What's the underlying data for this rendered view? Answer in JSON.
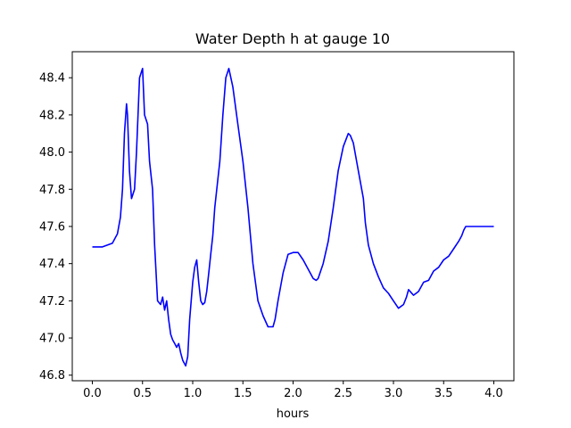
{
  "chart_data": {
    "type": "line",
    "title": "Water Depth h at gauge 10",
    "xlabel": "hours",
    "ylabel": "",
    "xlim": [
      -0.2,
      4.2
    ],
    "ylim": [
      46.77,
      48.54
    ],
    "xticks": [
      0.0,
      0.5,
      1.0,
      1.5,
      2.0,
      2.5,
      3.0,
      3.5,
      4.0
    ],
    "xtick_labels": [
      "0.0",
      "0.5",
      "1.0",
      "1.5",
      "2.0",
      "2.5",
      "3.0",
      "3.5",
      "4.0"
    ],
    "yticks": [
      46.8,
      47.0,
      47.2,
      47.4,
      47.6,
      47.8,
      48.0,
      48.2,
      48.4
    ],
    "ytick_labels": [
      "46.8",
      "47.0",
      "47.2",
      "47.4",
      "47.6",
      "47.8",
      "48.0",
      "48.2",
      "48.4"
    ],
    "grid": false,
    "series": [
      {
        "color": "#0000ff",
        "x": [
          0.0,
          0.1,
          0.2,
          0.25,
          0.28,
          0.3,
          0.32,
          0.34,
          0.35,
          0.37,
          0.39,
          0.42,
          0.44,
          0.47,
          0.5,
          0.52,
          0.55,
          0.57,
          0.6,
          0.62,
          0.65,
          0.68,
          0.7,
          0.72,
          0.74,
          0.76,
          0.78,
          0.8,
          0.82,
          0.84,
          0.86,
          0.88,
          0.9,
          0.93,
          0.95,
          0.97,
          1.0,
          1.02,
          1.04,
          1.06,
          1.08,
          1.1,
          1.12,
          1.14,
          1.16,
          1.18,
          1.2,
          1.22,
          1.25,
          1.27,
          1.3,
          1.33,
          1.36,
          1.4,
          1.45,
          1.5,
          1.55,
          1.6,
          1.65,
          1.7,
          1.75,
          1.8,
          1.82,
          1.85,
          1.9,
          1.95,
          2.0,
          2.05,
          2.1,
          2.15,
          2.2,
          2.23,
          2.25,
          2.3,
          2.35,
          2.4,
          2.45,
          2.5,
          2.55,
          2.57,
          2.6,
          2.65,
          2.7,
          2.72,
          2.75,
          2.8,
          2.85,
          2.9,
          2.95,
          3.0,
          3.05,
          3.1,
          3.13,
          3.15,
          3.2,
          3.25,
          3.3,
          3.35,
          3.4,
          3.45,
          3.5,
          3.55,
          3.6,
          3.65,
          3.68,
          3.7,
          3.72,
          3.74,
          3.76,
          3.78,
          3.8,
          3.82,
          3.84,
          3.86,
          3.88,
          3.9,
          3.93,
          3.96,
          4.0
        ],
        "y": [
          47.49,
          47.49,
          47.51,
          47.56,
          47.65,
          47.8,
          48.1,
          48.26,
          48.2,
          47.9,
          47.75,
          47.8,
          48.0,
          48.4,
          48.45,
          48.2,
          48.15,
          47.95,
          47.8,
          47.5,
          47.2,
          47.18,
          47.22,
          47.15,
          47.2,
          47.1,
          47.02,
          46.99,
          46.97,
          46.95,
          46.97,
          46.92,
          46.88,
          46.85,
          46.9,
          47.1,
          47.3,
          47.38,
          47.42,
          47.3,
          47.2,
          47.18,
          47.19,
          47.25,
          47.35,
          47.45,
          47.55,
          47.7,
          47.85,
          47.95,
          48.2,
          48.4,
          48.45,
          48.35,
          48.15,
          47.95,
          47.7,
          47.4,
          47.2,
          47.12,
          47.06,
          47.06,
          47.1,
          47.2,
          47.35,
          47.45,
          47.46,
          47.46,
          47.42,
          47.37,
          47.32,
          47.31,
          47.32,
          47.4,
          47.52,
          47.7,
          47.9,
          48.03,
          48.1,
          48.09,
          48.05,
          47.9,
          47.75,
          47.62,
          47.5,
          47.4,
          47.33,
          47.27,
          47.24,
          47.2,
          47.16,
          47.18,
          47.22,
          47.26,
          47.23,
          47.25,
          47.3,
          47.31,
          47.36,
          47.38,
          47.42,
          47.44,
          47.48,
          47.52,
          47.55,
          47.58,
          47.6,
          47.6,
          47.6,
          47.6,
          47.6,
          47.6,
          47.6,
          47.6,
          47.6,
          47.6,
          47.6,
          47.6,
          47.6
        ]
      }
    ]
  }
}
